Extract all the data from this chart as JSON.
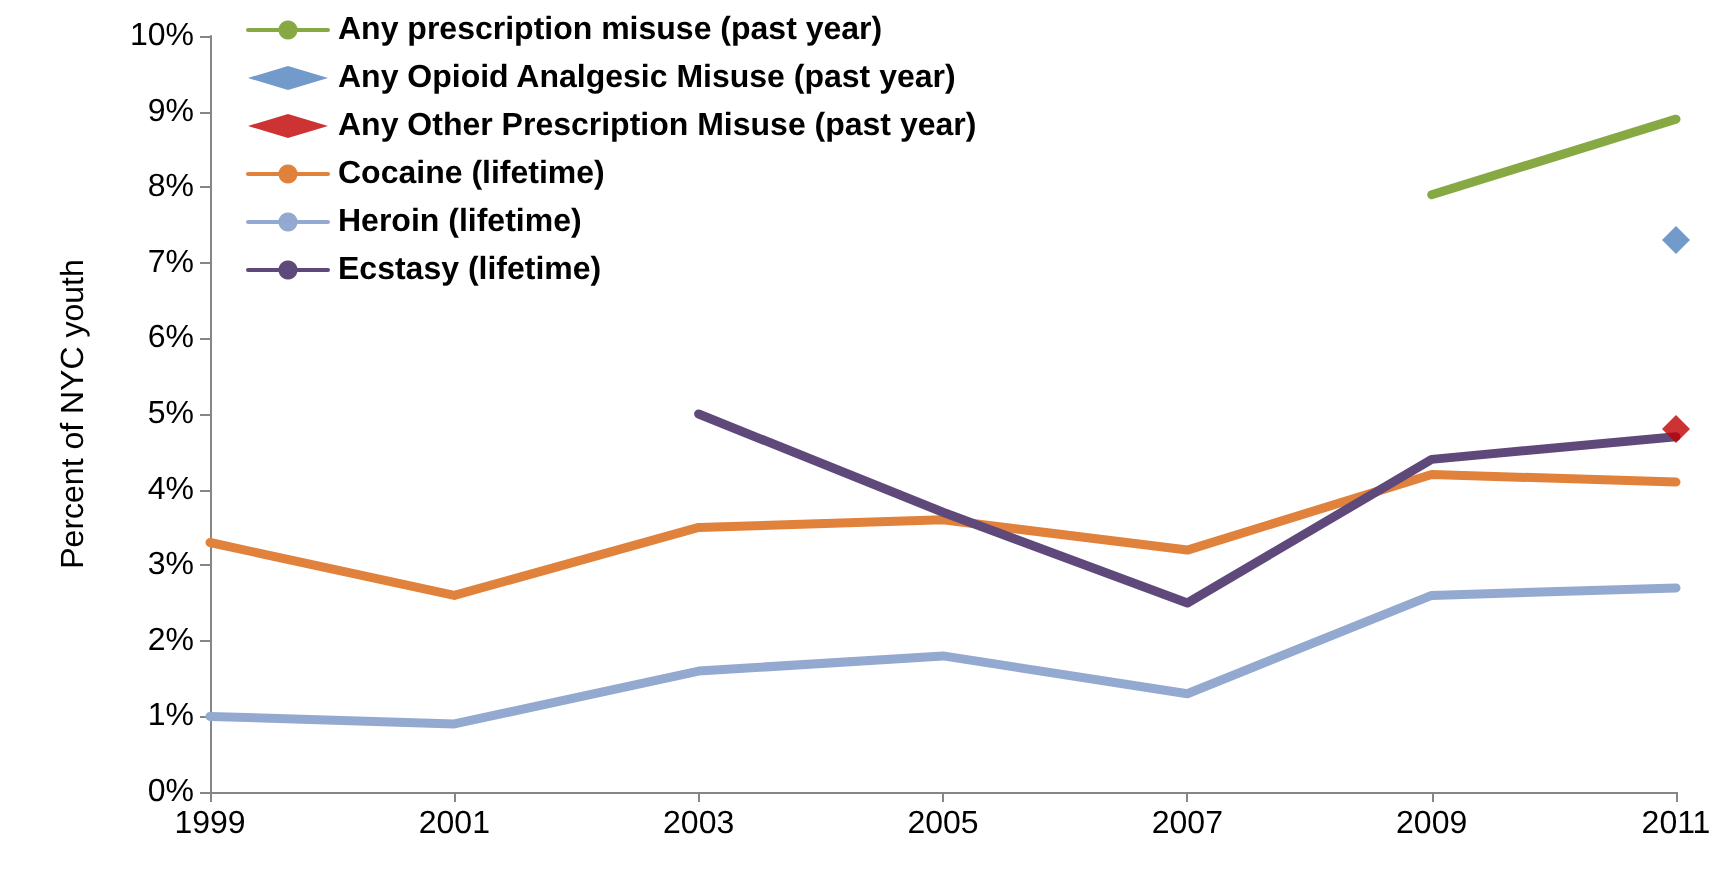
{
  "chart_data": {
    "type": "line",
    "ylabel": "Percent of NYC youth",
    "categories": [
      "1999",
      "2001",
      "2003",
      "2005",
      "2007",
      "2009",
      "2011"
    ],
    "series": [
      {
        "name": "Any prescription misuse (past year)",
        "color": "#86a944",
        "values": [
          null,
          null,
          null,
          null,
          null,
          7.9,
          8.9
        ]
      },
      {
        "name": "Any Opioid Analgesic Misuse (past year)",
        "type": "scatter",
        "marker": "diamond",
        "color": "#4f81bd",
        "values": [
          null,
          null,
          null,
          null,
          null,
          null,
          7.3
        ]
      },
      {
        "name": "Any Other Prescription Misuse (past year)",
        "type": "scatter",
        "marker": "diamond",
        "color": "#c00000",
        "values": [
          null,
          null,
          null,
          null,
          null,
          null,
          4.8
        ]
      },
      {
        "name": "Cocaine (lifetime)",
        "color": "#e0823b",
        "values": [
          3.3,
          2.6,
          3.5,
          3.6,
          3.2,
          4.2,
          4.1
        ]
      },
      {
        "name": "Heroin (lifetime)",
        "color": "#93a9d0",
        "values": [
          1.0,
          0.9,
          1.6,
          1.8,
          1.3,
          2.6,
          2.7
        ]
      },
      {
        "name": "Ecstasy (lifetime)",
        "color": "#5f497a",
        "values": [
          null,
          null,
          5.0,
          3.7,
          2.5,
          4.4,
          4.7
        ]
      }
    ],
    "ylim": [
      0,
      10
    ],
    "yticks": [
      {
        "value": 0,
        "label": "0%"
      },
      {
        "value": 1,
        "label": "1%"
      },
      {
        "value": 2,
        "label": "2%"
      },
      {
        "value": 3,
        "label": "3%"
      },
      {
        "value": 4,
        "label": "4%"
      },
      {
        "value": 5,
        "label": "5%"
      },
      {
        "value": 6,
        "label": "6%"
      },
      {
        "value": 7,
        "label": "7%"
      },
      {
        "value": 8,
        "label": "8%"
      },
      {
        "value": 9,
        "label": "9%"
      },
      {
        "value": 10,
        "label": "10%"
      }
    ],
    "grid": false,
    "legend": "top left",
    "marker": "none"
  }
}
